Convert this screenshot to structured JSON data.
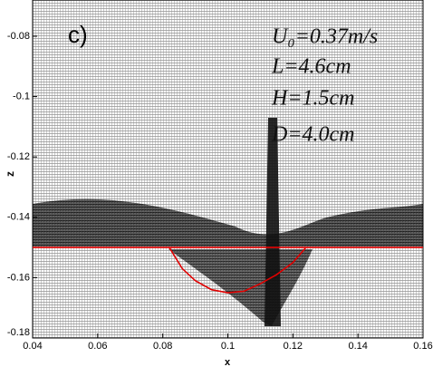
{
  "chart_data": {
    "type": "line",
    "panel_label": "c)",
    "annotations": [
      "U₀=0.37m/s",
      "L=4.6cm",
      "H=1.5cm",
      "D=4.0cm"
    ],
    "x_label": "x",
    "y_label": "z",
    "xlim": [
      0.04,
      0.16
    ],
    "xticks": [
      0.04,
      0.06,
      0.08,
      0.1,
      0.12,
      0.14,
      0.16
    ],
    "ylim": [
      -0.18,
      -0.068
    ],
    "yticks": [
      -0.18,
      -0.16,
      -0.14,
      -0.12,
      -0.1,
      -0.08
    ],
    "series": [
      {
        "color": "#e00000",
        "x": [
          0.04,
          0.16
        ],
        "values": [
          -0.15,
          -0.15
        ]
      },
      {
        "color": "#e00000",
        "x": [
          0.082,
          0.086,
          0.09,
          0.095,
          0.1,
          0.105,
          0.11,
          0.115,
          0.12,
          0.124
        ],
        "values": [
          -0.15,
          -0.157,
          -0.161,
          -0.164,
          -0.165,
          -0.1645,
          -0.162,
          -0.159,
          -0.155,
          -0.15
        ]
      }
    ]
  }
}
